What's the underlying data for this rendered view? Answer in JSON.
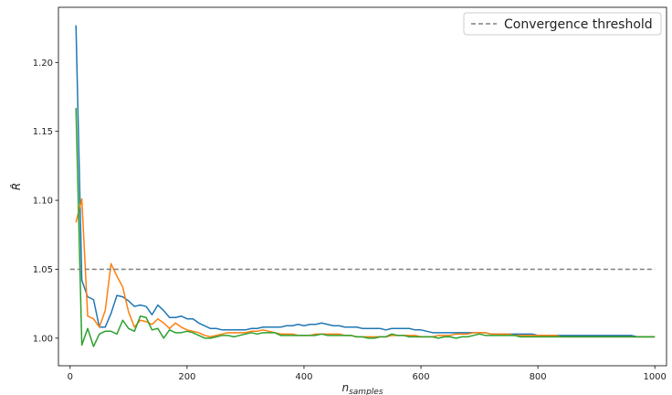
{
  "chart_data": {
    "type": "line",
    "title": "",
    "xlabel": "n",
    "xlabel_sub": "samples",
    "ylabel": "R̂",
    "xlim": [
      -20,
      1020
    ],
    "ylim": [
      0.98,
      1.24
    ],
    "xticks": [
      0,
      200,
      400,
      600,
      800,
      1000
    ],
    "yticks": [
      1.0,
      1.05,
      1.1,
      1.15,
      1.2
    ],
    "xtick_labels": [
      "0",
      "200",
      "400",
      "600",
      "800",
      "1000"
    ],
    "ytick_labels": [
      "1.00",
      "1.05",
      "1.10",
      "1.15",
      "1.20"
    ],
    "grid": false,
    "legend_position": "top-right",
    "threshold": {
      "name": "Convergence threshold",
      "value": 1.05,
      "x_range": [
        0,
        1000
      ],
      "color": "#808080"
    },
    "x": [
      10,
      20,
      30,
      40,
      50,
      60,
      70,
      80,
      90,
      100,
      110,
      120,
      130,
      140,
      150,
      160,
      170,
      180,
      190,
      200,
      210,
      220,
      230,
      240,
      250,
      260,
      270,
      280,
      290,
      300,
      310,
      320,
      330,
      340,
      350,
      360,
      370,
      380,
      390,
      400,
      410,
      420,
      430,
      440,
      450,
      460,
      470,
      480,
      490,
      500,
      510,
      520,
      530,
      540,
      550,
      560,
      570,
      580,
      590,
      600,
      610,
      620,
      630,
      640,
      650,
      660,
      670,
      680,
      690,
      700,
      710,
      720,
      730,
      740,
      750,
      760,
      770,
      780,
      790,
      800,
      810,
      820,
      830,
      840,
      850,
      860,
      870,
      880,
      890,
      900,
      910,
      920,
      930,
      940,
      950,
      960,
      970,
      980,
      990,
      1000
    ],
    "series": [
      {
        "color": "#1f77b4",
        "values": [
          1.227,
          1.042,
          1.03,
          1.028,
          1.008,
          1.008,
          1.018,
          1.031,
          1.03,
          1.027,
          1.023,
          1.024,
          1.023,
          1.017,
          1.024,
          1.02,
          1.015,
          1.015,
          1.016,
          1.014,
          1.014,
          1.011,
          1.009,
          1.007,
          1.007,
          1.006,
          1.006,
          1.006,
          1.006,
          1.006,
          1.007,
          1.007,
          1.008,
          1.008,
          1.008,
          1.008,
          1.009,
          1.009,
          1.01,
          1.009,
          1.01,
          1.01,
          1.011,
          1.01,
          1.009,
          1.009,
          1.008,
          1.008,
          1.008,
          1.007,
          1.007,
          1.007,
          1.007,
          1.006,
          1.007,
          1.007,
          1.007,
          1.007,
          1.006,
          1.006,
          1.005,
          1.004,
          1.004,
          1.004,
          1.004,
          1.004,
          1.004,
          1.004,
          1.004,
          1.004,
          1.004,
          1.003,
          1.003,
          1.003,
          1.003,
          1.003,
          1.003,
          1.003,
          1.003,
          1.002,
          1.002,
          1.002,
          1.002,
          1.002,
          1.002,
          1.002,
          1.002,
          1.002,
          1.002,
          1.002,
          1.002,
          1.002,
          1.002,
          1.002,
          1.002,
          1.002,
          1.001,
          1.001,
          1.001,
          1.001
        ]
      },
      {
        "color": "#ff7f0e",
        "values": [
          1.084,
          1.101,
          1.016,
          1.014,
          1.008,
          1.02,
          1.054,
          1.045,
          1.037,
          1.019,
          1.008,
          1.013,
          1.012,
          1.01,
          1.014,
          1.011,
          1.007,
          1.011,
          1.008,
          1.006,
          1.005,
          1.004,
          1.002,
          1.001,
          1.002,
          1.003,
          1.004,
          1.004,
          1.004,
          1.004,
          1.005,
          1.005,
          1.006,
          1.005,
          1.004,
          1.003,
          1.003,
          1.003,
          1.002,
          1.002,
          1.002,
          1.003,
          1.003,
          1.003,
          1.003,
          1.003,
          1.002,
          1.002,
          1.001,
          1.001,
          1.001,
          1.001,
          1.001,
          1.001,
          1.002,
          1.002,
          1.002,
          1.002,
          1.002,
          1.001,
          1.001,
          1.001,
          1.002,
          1.002,
          1.002,
          1.003,
          1.003,
          1.003,
          1.004,
          1.004,
          1.004,
          1.003,
          1.003,
          1.003,
          1.003,
          1.002,
          1.002,
          1.002,
          1.002,
          1.002,
          1.002,
          1.002,
          1.002,
          1.001,
          1.001,
          1.001,
          1.001,
          1.001,
          1.001,
          1.001,
          1.001,
          1.001,
          1.001,
          1.001,
          1.001,
          1.001,
          1.001,
          1.001,
          1.001,
          1.001
        ]
      },
      {
        "color": "#2ca02c",
        "values": [
          1.167,
          0.995,
          1.007,
          0.994,
          1.003,
          1.005,
          1.005,
          1.003,
          1.013,
          1.007,
          1.005,
          1.016,
          1.015,
          1.006,
          1.007,
          1.0,
          1.006,
          1.004,
          1.004,
          1.005,
          1.004,
          1.002,
          1.0,
          1.0,
          1.001,
          1.002,
          1.002,
          1.001,
          1.002,
          1.003,
          1.004,
          1.003,
          1.004,
          1.004,
          1.004,
          1.002,
          1.002,
          1.002,
          1.002,
          1.002,
          1.002,
          1.002,
          1.003,
          1.002,
          1.002,
          1.002,
          1.002,
          1.002,
          1.001,
          1.001,
          1.0,
          1.0,
          1.001,
          1.001,
          1.003,
          1.002,
          1.002,
          1.001,
          1.001,
          1.001,
          1.001,
          1.001,
          1.0,
          1.001,
          1.001,
          1.0,
          1.001,
          1.001,
          1.002,
          1.003,
          1.002,
          1.002,
          1.002,
          1.002,
          1.002,
          1.002,
          1.001,
          1.001,
          1.001,
          1.001,
          1.001,
          1.001,
          1.001,
          1.001,
          1.001,
          1.001,
          1.001,
          1.001,
          1.001,
          1.001,
          1.001,
          1.001,
          1.001,
          1.001,
          1.001,
          1.001,
          1.001,
          1.001,
          1.001,
          1.001
        ]
      }
    ]
  }
}
